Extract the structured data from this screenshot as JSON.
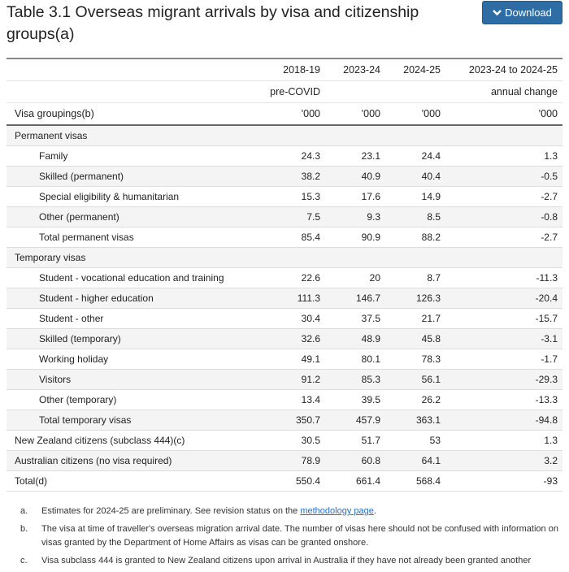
{
  "title": "Table 3.1 Overseas migrant arrivals by visa and citizenship groups(a)",
  "download_label": "Download",
  "header": {
    "row1": [
      "2018-19",
      "2023-24",
      "2024-25",
      "2023-24 to 2024-25"
    ],
    "row2": [
      "pre-COVID",
      "",
      "",
      "annual change"
    ],
    "row3_label": "Visa groupings(b)",
    "row3": [
      "'000",
      "'000",
      "'000",
      "'000"
    ]
  },
  "rows": [
    {
      "label": "Permanent visas",
      "indent": false,
      "values": [
        "",
        "",
        "",
        ""
      ]
    },
    {
      "label": "Family",
      "indent": true,
      "values": [
        "24.3",
        "23.1",
        "24.4",
        "1.3"
      ]
    },
    {
      "label": "Skilled (permanent)",
      "indent": true,
      "values": [
        "38.2",
        "40.9",
        "40.4",
        "-0.5"
      ]
    },
    {
      "label": "Special eligibility & humanitarian",
      "indent": true,
      "values": [
        "15.3",
        "17.6",
        "14.9",
        "-2.7"
      ]
    },
    {
      "label": "Other (permanent)",
      "indent": true,
      "values": [
        "7.5",
        "9.3",
        "8.5",
        "-0.8"
      ]
    },
    {
      "label": "Total permanent visas",
      "indent": true,
      "values": [
        "85.4",
        "90.9",
        "88.2",
        "-2.7"
      ]
    },
    {
      "label": "Temporary visas",
      "indent": false,
      "values": [
        "",
        "",
        "",
        ""
      ]
    },
    {
      "label": "Student - vocational education and training",
      "indent": true,
      "values": [
        "22.6",
        "20",
        "8.7",
        "-11.3"
      ]
    },
    {
      "label": "Student - higher education",
      "indent": true,
      "values": [
        "111.3",
        "146.7",
        "126.3",
        "-20.4"
      ]
    },
    {
      "label": "Student - other",
      "indent": true,
      "values": [
        "30.4",
        "37.5",
        "21.7",
        "-15.7"
      ]
    },
    {
      "label": "Skilled (temporary)",
      "indent": true,
      "values": [
        "32.6",
        "48.9",
        "45.8",
        "-3.1"
      ]
    },
    {
      "label": "Working holiday",
      "indent": true,
      "values": [
        "49.1",
        "80.1",
        "78.3",
        "-1.7"
      ]
    },
    {
      "label": "Visitors",
      "indent": true,
      "values": [
        "91.2",
        "85.3",
        "56.1",
        "-29.3"
      ]
    },
    {
      "label": "Other (temporary)",
      "indent": true,
      "values": [
        "13.4",
        "39.5",
        "26.2",
        "-13.3"
      ]
    },
    {
      "label": "Total temporary visas",
      "indent": true,
      "values": [
        "350.7",
        "457.9",
        "363.1",
        "-94.8"
      ]
    },
    {
      "label": "New Zealand citizens (subclass 444)(c)",
      "indent": false,
      "values": [
        "30.5",
        "51.7",
        "53",
        "1.3"
      ]
    },
    {
      "label": "Australian citizens (no visa required)",
      "indent": false,
      "values": [
        "78.9",
        "60.8",
        "64.1",
        "3.2"
      ]
    },
    {
      "label": "Total(d)",
      "indent": false,
      "values": [
        "550.4",
        "661.4",
        "568.4",
        "-93"
      ]
    }
  ],
  "notes": [
    {
      "key": "a.",
      "text": "Estimates for 2024-25 are preliminary. See revision status on the ",
      "link": "methodology page",
      "after": "."
    },
    {
      "key": "b.",
      "text": "The visa at time of traveller's overseas migration arrival date. The number of visas here should not be confused with information on visas granted by the Department of Home Affairs as visas can be granted onshore."
    },
    {
      "key": "c.",
      "text": "Visa subclass 444 is granted to New Zealand citizens upon arrival in Australia if they have not already been granted another"
    }
  ]
}
